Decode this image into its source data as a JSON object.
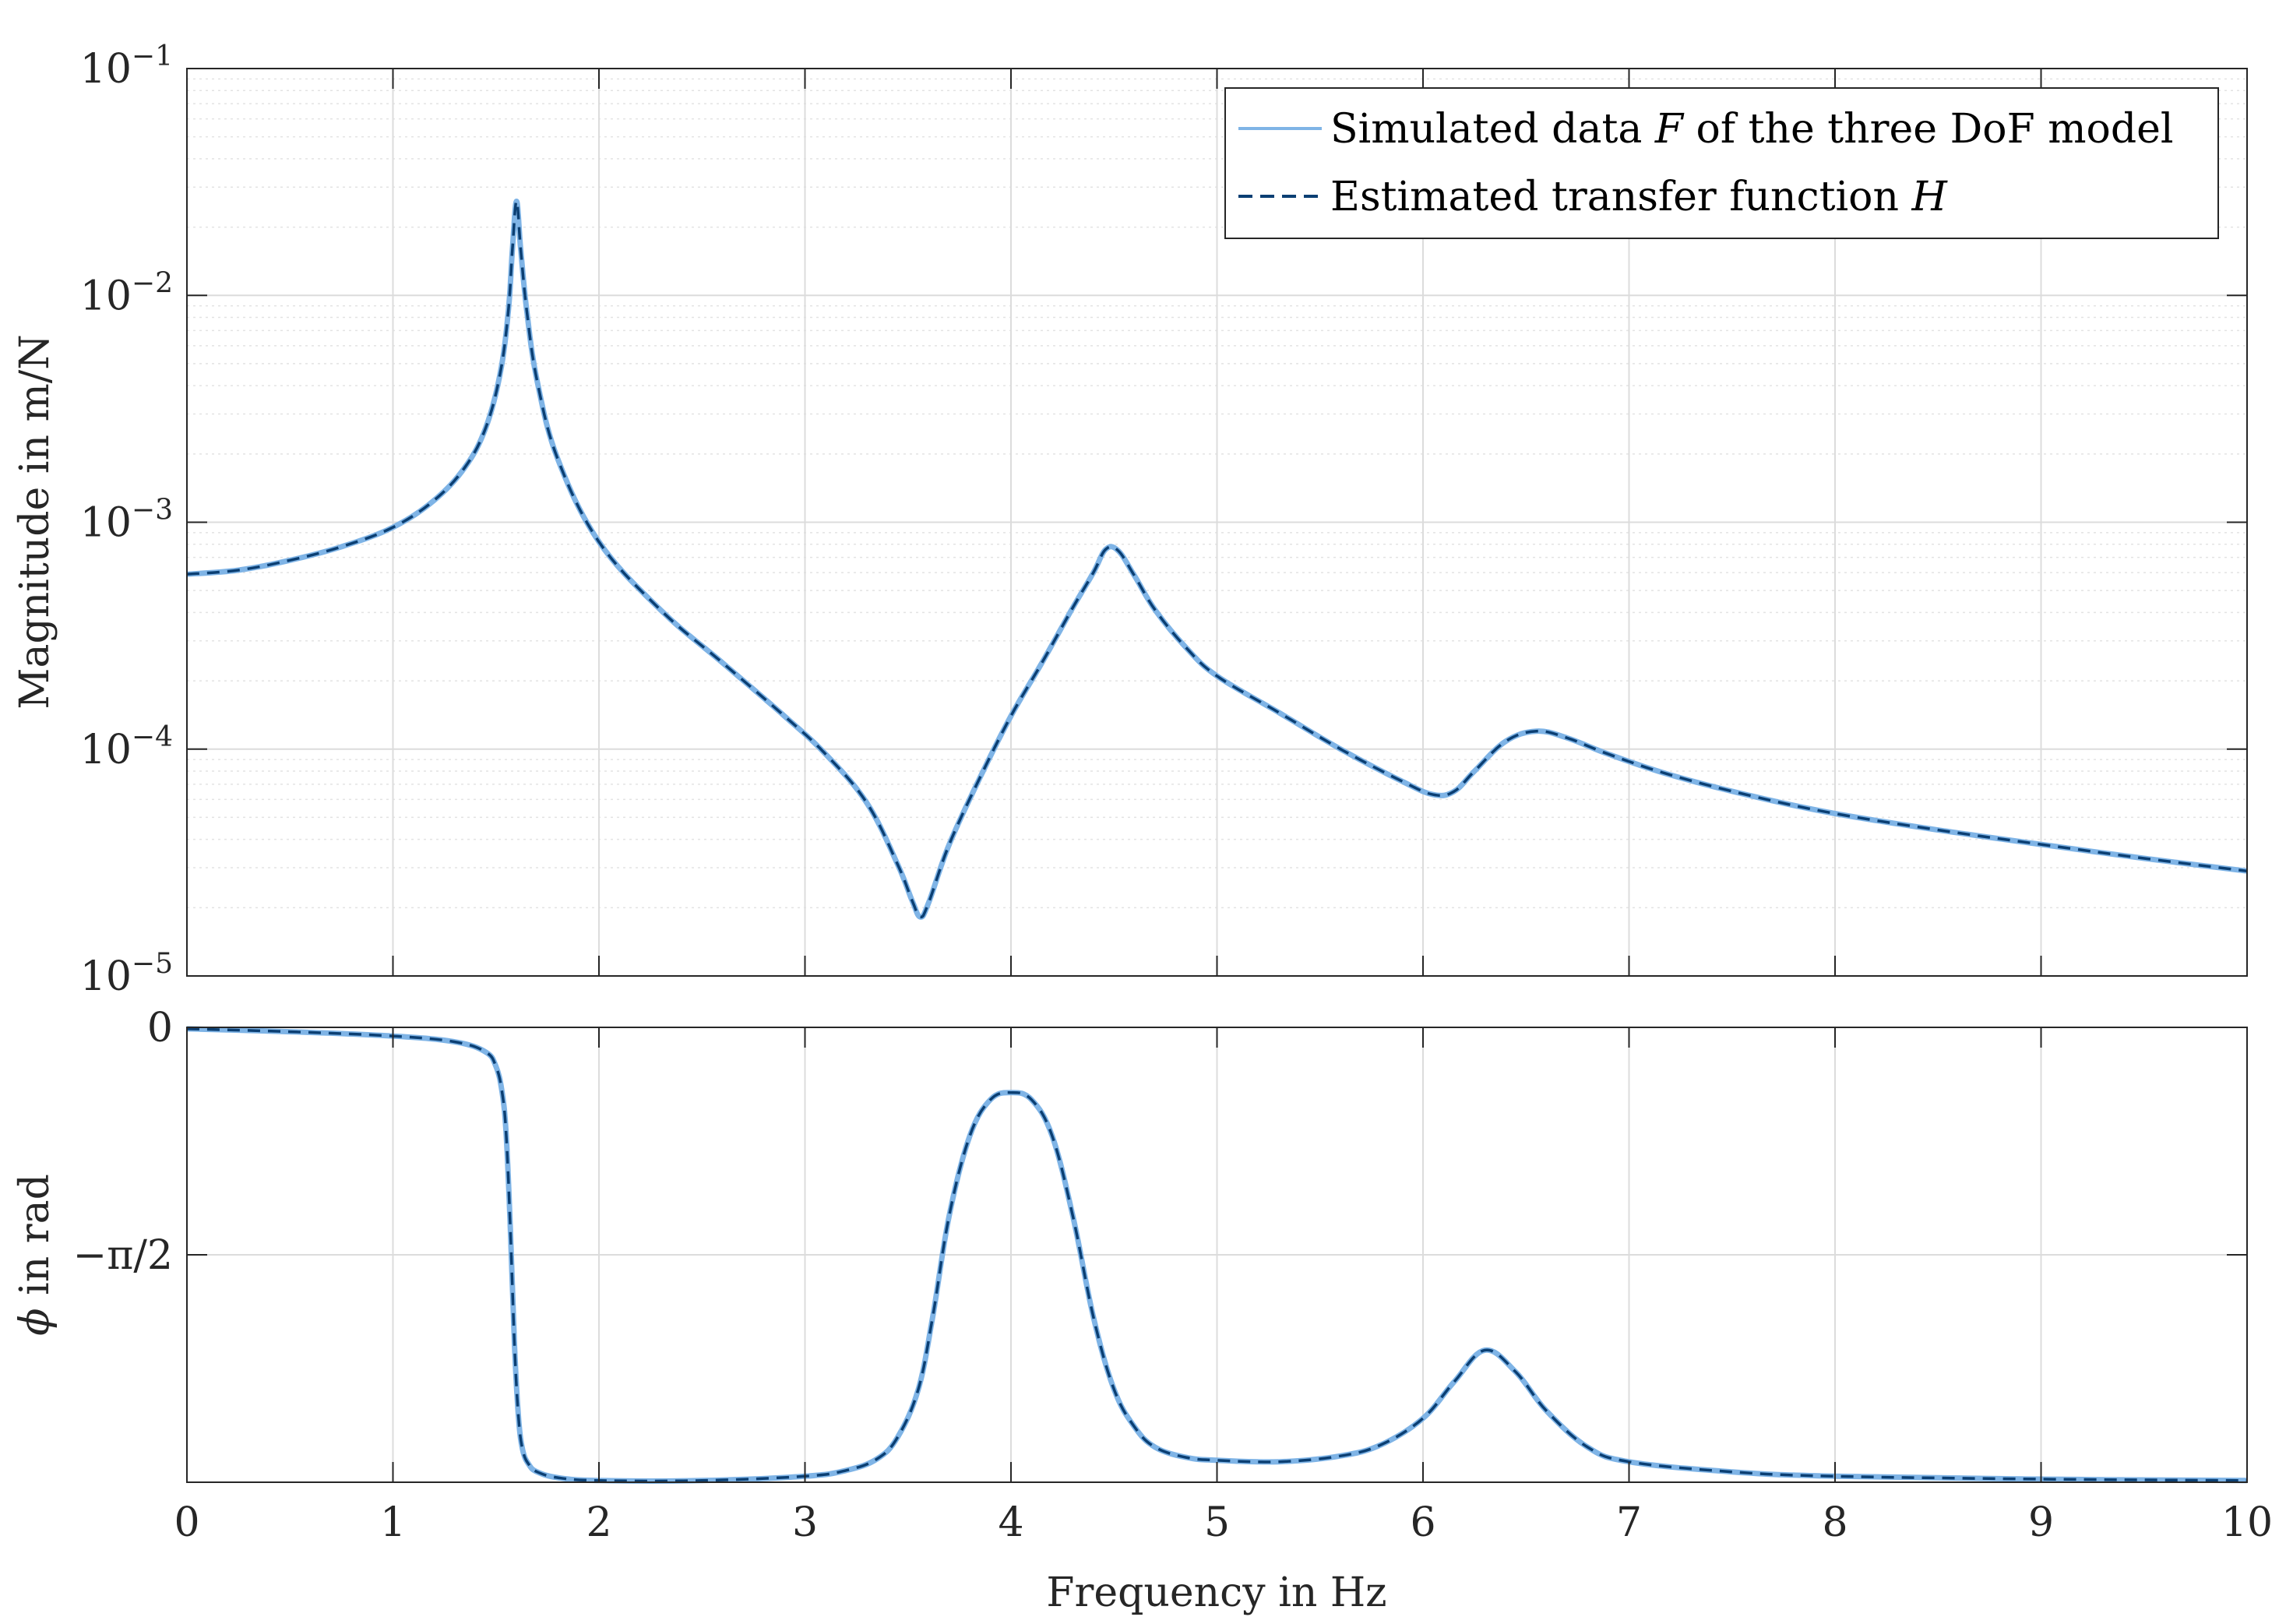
{
  "chart_data": [
    {
      "type": "line",
      "panel": "magnitude",
      "ylabel": "Magnitude in m/N",
      "yscale": "log",
      "ylim": [
        1e-05,
        0.1
      ],
      "xlim": [
        0,
        10
      ],
      "ytick_labels": [
        {
          "base": "10",
          "exp": "−1",
          "value": 0.1
        },
        {
          "base": "10",
          "exp": "−2",
          "value": 0.01
        },
        {
          "base": "10",
          "exp": "−3",
          "value": 0.001
        },
        {
          "base": "10",
          "exp": "−4",
          "value": 0.0001
        },
        {
          "base": "10",
          "exp": "−5",
          "value": 1e-05
        }
      ],
      "grid": true,
      "legend": {
        "placement": "top-right",
        "entries": [
          {
            "pre": "Simulated data ",
            "sym": "F",
            "post": " of the three DoF model",
            "color": "#7fb4e6",
            "style": "solid"
          },
          {
            "pre": "Estimated transfer function ",
            "sym": "H",
            "post": "",
            "color": "#0b3f73",
            "style": "dashed"
          }
        ]
      },
      "series": [
        {
          "name": "Simulated data F of the three DoF model",
          "color": "#7fb4e6",
          "x": [
            0,
            0.25,
            0.5,
            0.75,
            1.0,
            1.2,
            1.35,
            1.45,
            1.52,
            1.56,
            1.58,
            1.6,
            1.62,
            1.65,
            1.7,
            1.8,
            2.0,
            2.3,
            2.6,
            2.9,
            3.1,
            3.3,
            3.45,
            3.52,
            3.56,
            3.6,
            3.7,
            3.85,
            4.0,
            4.15,
            4.3,
            4.4,
            4.46,
            4.52,
            4.6,
            4.7,
            4.85,
            5.0,
            5.3,
            5.6,
            5.9,
            6.05,
            6.15,
            6.25,
            6.4,
            6.55,
            6.7,
            6.9,
            7.2,
            7.6,
            8.0,
            8.5,
            9.0,
            9.5,
            10.0
          ],
          "y": [
            0.00059,
            0.000615,
            0.00068,
            0.00078,
            0.00095,
            0.00125,
            0.00175,
            0.0026,
            0.0045,
            0.0085,
            0.016,
            0.026,
            0.016,
            0.0085,
            0.0042,
            0.0019,
            0.00082,
            0.00041,
            0.00024,
            0.00014,
            9.5e-05,
            5.8e-05,
            3.1e-05,
            2.15e-05,
            1.82e-05,
            2.1e-05,
            3.8e-05,
            7.5e-05,
            0.00014,
            0.00024,
            0.00042,
            0.0006,
            0.00076,
            0.00075,
            0.00058,
            0.00041,
            0.00028,
            0.00021,
            0.000145,
            0.0001,
            7.2e-05,
            6.3e-05,
            6.5e-05,
            8e-05,
            0.000108,
            0.00012,
            0.000112,
            9.5e-05,
            7.7e-05,
            6.2e-05,
            5.2e-05,
            4.4e-05,
            3.8e-05,
            3.3e-05,
            2.9e-05
          ]
        },
        {
          "name": "Estimated transfer function H",
          "color": "#0b3f73",
          "same_as": "Simulated data F of the three DoF model"
        }
      ]
    },
    {
      "type": "line",
      "panel": "phase",
      "ylabel_sym": "ϕ",
      "ylabel_rest": " in rad",
      "xlabel": "Frequency in Hz",
      "ylim": [
        -3.1416,
        0
      ],
      "xlim": [
        0,
        10
      ],
      "xticks": [
        0,
        1,
        2,
        3,
        4,
        5,
        6,
        7,
        8,
        9,
        10
      ],
      "xtick_labels": [
        "0",
        "1",
        "2",
        "3",
        "4",
        "5",
        "6",
        "7",
        "8",
        "9",
        "10"
      ],
      "ytick_labels": [
        {
          "label": "0",
          "value": 0
        },
        {
          "label": "−π/2",
          "value": -1.5708
        }
      ],
      "grid": true,
      "series": [
        {
          "name": "Simulated data F of the three DoF model",
          "color": "#7fb4e6",
          "x": [
            0,
            0.5,
            1.0,
            1.3,
            1.45,
            1.5,
            1.53,
            1.55,
            1.57,
            1.59,
            1.61,
            1.63,
            1.66,
            1.7,
            1.8,
            2.0,
            2.5,
            3.0,
            3.2,
            3.35,
            3.45,
            3.55,
            3.62,
            3.7,
            3.8,
            3.9,
            4.0,
            4.1,
            4.2,
            4.3,
            4.4,
            4.5,
            4.6,
            4.7,
            4.85,
            5.0,
            5.3,
            5.6,
            5.8,
            6.0,
            6.15,
            6.3,
            6.45,
            6.6,
            6.8,
            7.0,
            7.5,
            8.0,
            9.0,
            10.0
          ],
          "y": [
            -0.01,
            -0.03,
            -0.06,
            -0.1,
            -0.17,
            -0.27,
            -0.45,
            -0.75,
            -1.4,
            -2.2,
            -2.7,
            -2.92,
            -3.02,
            -3.07,
            -3.11,
            -3.13,
            -3.13,
            -3.1,
            -3.06,
            -2.98,
            -2.83,
            -2.5,
            -2.0,
            -1.3,
            -0.75,
            -0.5,
            -0.45,
            -0.5,
            -0.75,
            -1.3,
            -2.0,
            -2.5,
            -2.76,
            -2.9,
            -2.97,
            -2.99,
            -3.0,
            -2.96,
            -2.88,
            -2.7,
            -2.45,
            -2.23,
            -2.38,
            -2.65,
            -2.9,
            -3.0,
            -3.07,
            -3.1,
            -3.12,
            -3.13
          ]
        },
        {
          "name": "Estimated transfer function H",
          "color": "#0b3f73",
          "same_as": "Simulated data F of the three DoF model"
        }
      ]
    }
  ]
}
